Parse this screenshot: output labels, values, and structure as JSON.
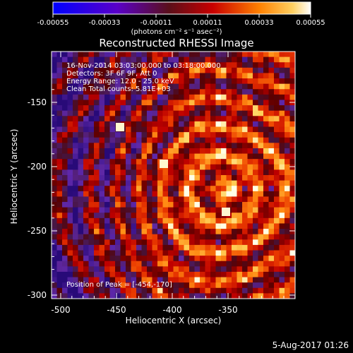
{
  "colorbar": {
    "ticks": [
      "-0.00055",
      "-0.00033",
      "-0.00011",
      "0.00011",
      "0.00033",
      "0.00055"
    ],
    "unit": "(photons cm⁻² s⁻¹ asec⁻²)"
  },
  "title": "Reconstructed RHESSI Image",
  "info": {
    "line1": "16-Nov-2014 03:03:00.000 to 03:18:00.000",
    "line2": "Detectors: 3F 6F 9F, Att 0",
    "line3": "Energy Range: 12.0 - 25.0 keV",
    "line4": "Clean    Total counts: 5.81E+03"
  },
  "peak_label": "Position of Peak = [-454,-170]",
  "axes": {
    "xlabel": "Heliocentric X (arcsec)",
    "ylabel": "Heliocentric Y (arcsec)",
    "xticks": [
      "-500",
      "-450",
      "-400",
      "-350"
    ],
    "yticks": [
      "-150",
      "-200",
      "-250",
      "-300"
    ]
  },
  "timestamp": "5-Aug-2017 01:26"
}
